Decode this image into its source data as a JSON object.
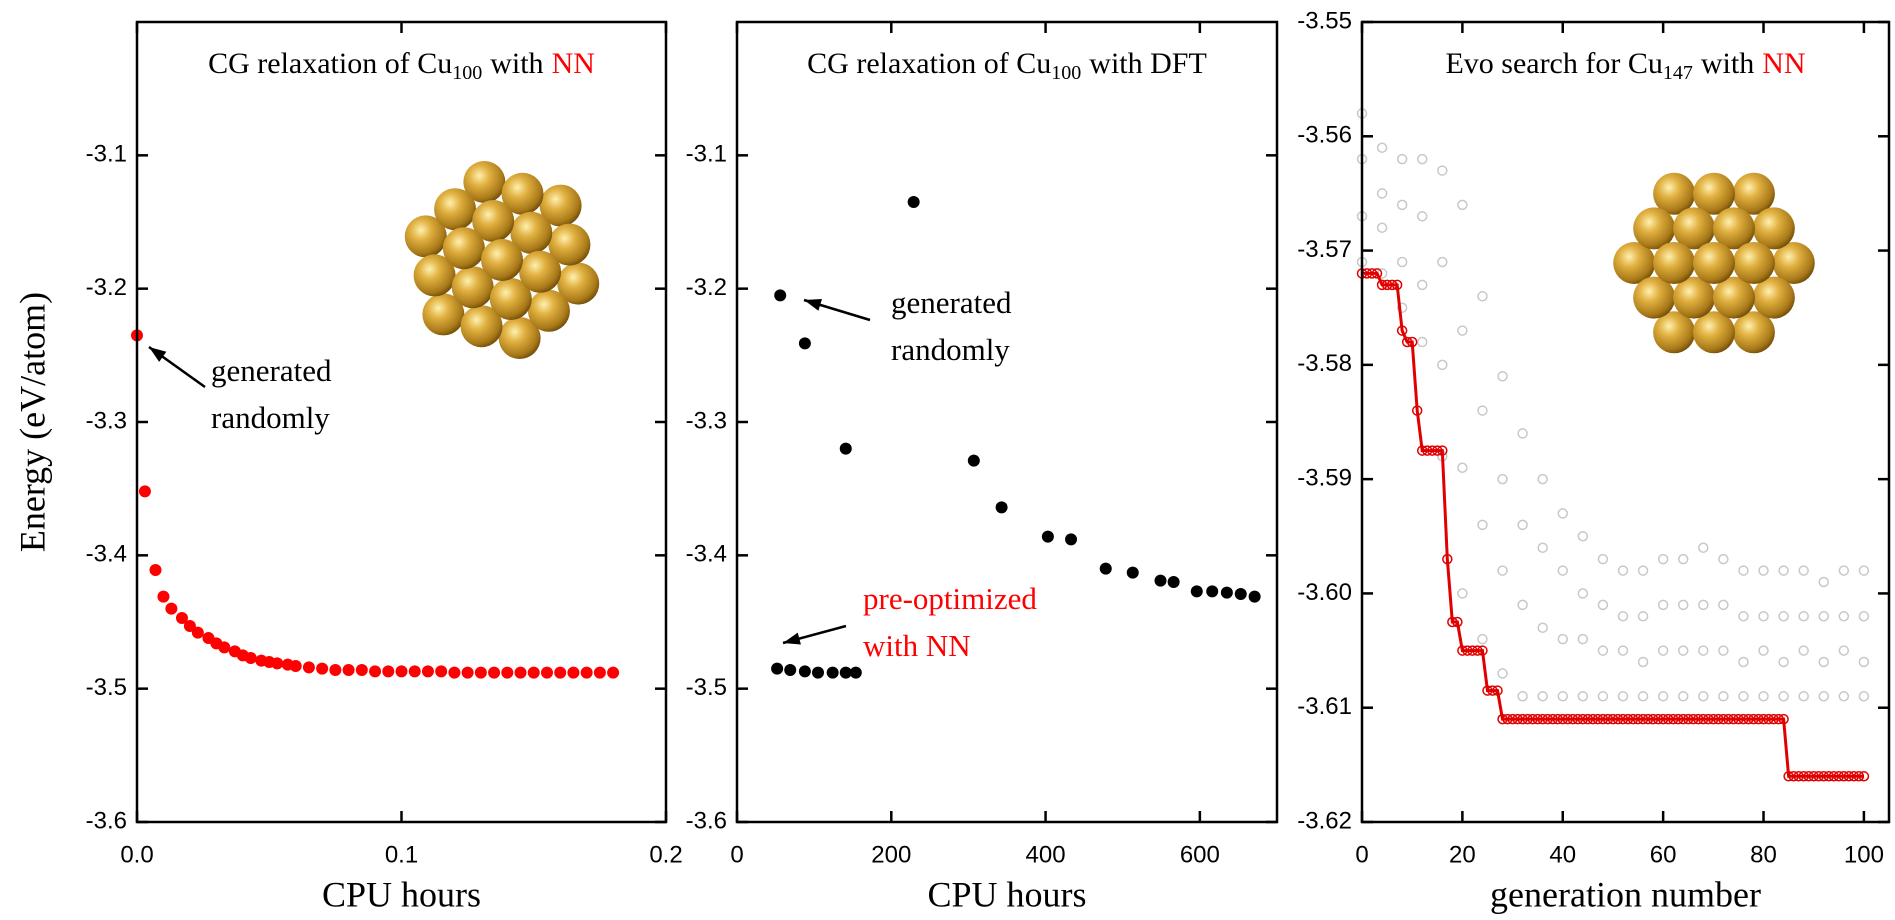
{
  "chart_data": [
    {
      "type": "scatter",
      "title": {
        "prefix": "CG relaxation of Cu",
        "subscript": "100",
        "suffix": "with",
        "highlight": "NN",
        "highlight_color": "#ff0000"
      },
      "x_label": "CPU hours",
      "y_label": "Energy (eV/atom)",
      "xlim": [
        0,
        0.2
      ],
      "xticks": [
        {
          "value": 0,
          "label": "0.0"
        },
        0.1,
        0.2
      ],
      "ylim": [
        -3.6,
        -3.0
      ],
      "yticks": [
        -3.6,
        -3.5,
        -3.4,
        -3.3,
        -3.2,
        -3.1
      ],
      "series": [
        {
          "color": "#ff0000",
          "x": [
            0,
            0.003,
            0.007,
            0.01,
            0.013,
            0.017,
            0.02,
            0.023,
            0.027,
            0.03,
            0.033,
            0.037,
            0.04,
            0.043,
            0.047,
            0.05,
            0.053,
            0.057,
            0.06,
            0.065,
            0.07,
            0.075,
            0.08,
            0.085,
            0.09,
            0.095,
            0.1,
            0.105,
            0.11,
            0.115,
            0.12,
            0.125,
            0.13,
            0.135,
            0.14,
            0.145,
            0.15,
            0.155,
            0.16,
            0.165,
            0.17,
            0.175,
            0.18
          ],
          "values": [
            -3.235,
            -3.352,
            -3.411,
            -3.431,
            -3.44,
            -3.447,
            -3.453,
            -3.458,
            -3.462,
            -3.466,
            -3.469,
            -3.472,
            -3.475,
            -3.477,
            -3.479,
            -3.48,
            -3.481,
            -3.482,
            -3.483,
            -3.484,
            -3.485,
            -3.486,
            -3.486,
            -3.486,
            -3.487,
            -3.487,
            -3.487,
            -3.487,
            -3.487,
            -3.487,
            -3.488,
            -3.488,
            -3.488,
            -3.488,
            -3.488,
            -3.488,
            -3.488,
            -3.488,
            -3.488,
            -3.488,
            -3.488,
            -3.488,
            -3.488
          ]
        }
      ],
      "annotations": [
        {
          "lines": [
            "generated",
            "randomly"
          ],
          "color": "#000000"
        }
      ]
    },
    {
      "type": "scatter",
      "title": {
        "prefix": "CG relaxation of Cu",
        "subscript": "100",
        "suffix": "with DFT"
      },
      "x_label": "CPU hours",
      "xlim": [
        0,
        700
      ],
      "xticks": [
        0,
        200,
        400,
        600
      ],
      "ylim": [
        -3.6,
        -3.0
      ],
      "yticks": [
        -3.6,
        -3.5,
        -3.4,
        -3.3,
        -3.2,
        -3.1
      ],
      "series": [
        {
          "color": "#000000",
          "x": [
            56,
            88,
            141,
            229,
            307,
            343,
            403,
            433,
            478,
            513,
            549,
            566,
            596,
            616,
            635,
            653,
            671,
            52,
            69,
            88,
            105,
            124,
            141,
            154
          ],
          "values": [
            -3.205,
            -3.241,
            -3.32,
            -3.135,
            -3.329,
            -3.364,
            -3.386,
            -3.388,
            -3.41,
            -3.413,
            -3.419,
            -3.42,
            -3.427,
            -3.427,
            -3.428,
            -3.429,
            -3.431,
            -3.485,
            -3.486,
            -3.487,
            -3.488,
            -3.488,
            -3.488,
            -3.488
          ]
        }
      ],
      "annotations": [
        {
          "lines": [
            "generated",
            "randomly"
          ],
          "color": "#000000"
        },
        {
          "lines": [
            "pre-optimized",
            "with NN"
          ],
          "color": "#ff0000"
        }
      ]
    },
    {
      "type": "scatter",
      "title": {
        "prefix": "Evo search for Cu",
        "subscript": "147",
        "suffix": "with",
        "highlight": "NN",
        "highlight_color": "#ff0000"
      },
      "x_label": "generation number",
      "xlim": [
        0,
        105
      ],
      "xticks": [
        0,
        20,
        40,
        60,
        80,
        100
      ],
      "ylim": [
        -3.62,
        -3.55
      ],
      "yticks": [
        -3.62,
        -3.61,
        {
          "value": -3.6,
          "label": "-3.60"
        },
        -3.59,
        -3.58,
        -3.57,
        -3.56,
        -3.55
      ],
      "series": [
        {
          "color": "#c8c8c8",
          "marker": "open",
          "x": [
            0,
            0,
            0,
            0,
            4,
            4,
            4,
            4,
            8,
            8,
            8,
            8,
            12,
            12,
            12,
            12,
            16,
            16,
            16,
            16,
            20,
            20,
            20,
            20,
            24,
            24,
            24,
            24,
            28,
            28,
            28,
            28,
            32,
            32,
            32,
            32,
            36,
            36,
            36,
            36,
            40,
            40,
            40,
            40,
            44,
            44,
            44,
            44,
            48,
            48,
            48,
            48,
            52,
            52,
            52,
            52,
            56,
            56,
            56,
            56,
            60,
            60,
            60,
            60,
            64,
            64,
            64,
            64,
            68,
            68,
            68,
            68,
            72,
            72,
            72,
            72,
            76,
            76,
            76,
            76,
            80,
            80,
            80,
            80,
            84,
            84,
            84,
            84,
            88,
            88,
            88,
            88,
            92,
            92,
            92,
            92,
            96,
            96,
            96,
            96,
            100,
            100,
            100,
            100
          ],
          "values": [
            -3.558,
            -3.562,
            -3.567,
            -3.571,
            -3.561,
            -3.565,
            -3.568,
            -3.572,
            -3.562,
            -3.566,
            -3.571,
            -3.575,
            -3.562,
            -3.567,
            -3.573,
            -3.578,
            -3.563,
            -3.571,
            -3.58,
            -3.588,
            -3.566,
            -3.577,
            -3.589,
            -3.6,
            -3.574,
            -3.584,
            -3.594,
            -3.604,
            -3.581,
            -3.59,
            -3.598,
            -3.607,
            -3.586,
            -3.594,
            -3.601,
            -3.609,
            -3.59,
            -3.596,
            -3.603,
            -3.609,
            -3.593,
            -3.598,
            -3.604,
            -3.609,
            -3.595,
            -3.6,
            -3.604,
            -3.609,
            -3.597,
            -3.601,
            -3.605,
            -3.609,
            -3.598,
            -3.602,
            -3.605,
            -3.609,
            -3.598,
            -3.602,
            -3.606,
            -3.609,
            -3.597,
            -3.601,
            -3.605,
            -3.609,
            -3.597,
            -3.601,
            -3.605,
            -3.609,
            -3.596,
            -3.601,
            -3.605,
            -3.609,
            -3.597,
            -3.601,
            -3.605,
            -3.609,
            -3.598,
            -3.602,
            -3.606,
            -3.609,
            -3.598,
            -3.602,
            -3.605,
            -3.609,
            -3.598,
            -3.602,
            -3.606,
            -3.609,
            -3.598,
            -3.602,
            -3.605,
            -3.609,
            -3.599,
            -3.602,
            -3.606,
            -3.609,
            -3.598,
            -3.602,
            -3.605,
            -3.609,
            -3.598,
            -3.602,
            -3.606,
            -3.609
          ]
        },
        {
          "color": "#e00000",
          "marker": "open",
          "lines": true,
          "x": [
            0,
            1,
            2,
            3,
            4,
            5,
            6,
            7,
            8,
            9,
            10,
            11,
            12,
            13,
            14,
            15,
            16,
            17,
            18,
            19,
            20,
            21,
            22,
            23,
            24,
            25,
            26,
            27,
            28,
            29,
            30,
            31,
            32,
            33,
            34,
            35,
            36,
            37,
            38,
            39,
            40,
            41,
            42,
            43,
            44,
            45,
            46,
            47,
            48,
            49,
            50,
            51,
            52,
            53,
            54,
            55,
            56,
            57,
            58,
            59,
            60,
            61,
            62,
            63,
            64,
            65,
            66,
            67,
            68,
            69,
            70,
            71,
            72,
            73,
            74,
            75,
            76,
            77,
            78,
            79,
            80,
            81,
            82,
            83,
            84,
            85,
            86,
            87,
            88,
            89,
            90,
            91,
            92,
            93,
            94,
            95,
            96,
            97,
            98,
            99,
            100
          ],
          "values": [
            -3.572,
            -3.572,
            -3.572,
            -3.572,
            -3.573,
            -3.573,
            -3.573,
            -3.573,
            -3.577,
            -3.578,
            -3.578,
            -3.584,
            -3.5875,
            -3.5875,
            -3.5875,
            -3.5875,
            -3.5875,
            -3.597,
            -3.6025,
            -3.6025,
            -3.605,
            -3.605,
            -3.605,
            -3.605,
            -3.605,
            -3.6085,
            -3.6085,
            -3.6085,
            -3.611,
            -3.611,
            -3.611,
            -3.611,
            -3.611,
            -3.611,
            -3.611,
            -3.611,
            -3.611,
            -3.611,
            -3.611,
            -3.611,
            -3.611,
            -3.611,
            -3.611,
            -3.611,
            -3.611,
            -3.611,
            -3.611,
            -3.611,
            -3.611,
            -3.611,
            -3.611,
            -3.611,
            -3.611,
            -3.611,
            -3.611,
            -3.611,
            -3.611,
            -3.611,
            -3.611,
            -3.611,
            -3.611,
            -3.611,
            -3.611,
            -3.611,
            -3.611,
            -3.611,
            -3.611,
            -3.611,
            -3.611,
            -3.611,
            -3.611,
            -3.611,
            -3.611,
            -3.611,
            -3.611,
            -3.611,
            -3.611,
            -3.611,
            -3.611,
            -3.611,
            -3.611,
            -3.611,
            -3.611,
            -3.611,
            -3.611,
            -3.616,
            -3.616,
            -3.616,
            -3.616,
            -3.616,
            -3.616,
            -3.616,
            -3.616,
            -3.616,
            -3.616,
            -3.616,
            -3.616,
            -3.616,
            -3.616,
            -3.616,
            -3.616
          ]
        }
      ]
    }
  ]
}
